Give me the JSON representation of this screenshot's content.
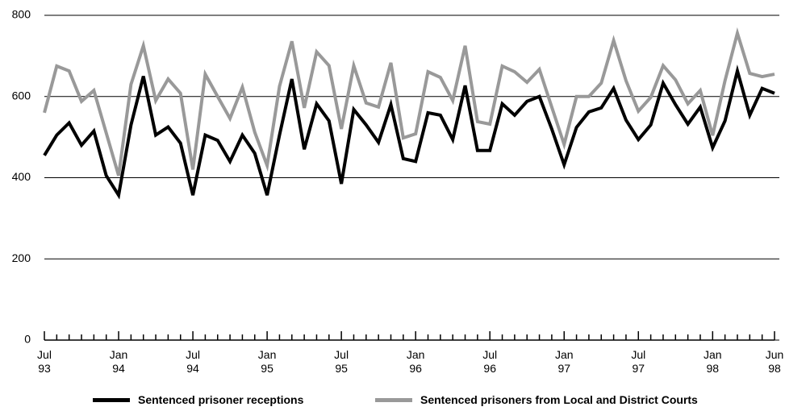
{
  "chart_data": {
    "type": "line",
    "categories": [
      "Jul 93",
      null,
      null,
      null,
      null,
      null,
      "Jan 94",
      null,
      null,
      null,
      null,
      null,
      "Jul 94",
      null,
      null,
      null,
      null,
      null,
      "Jan 95",
      null,
      null,
      null,
      null,
      null,
      "Jul 95",
      null,
      null,
      null,
      null,
      null,
      "Jan 96",
      null,
      null,
      null,
      null,
      null,
      "Jul 96",
      null,
      null,
      null,
      null,
      null,
      "Jan 97",
      null,
      null,
      null,
      null,
      null,
      "Jul 97",
      null,
      null,
      null,
      null,
      null,
      "Jan 98",
      null,
      null,
      null,
      null,
      "Jun 98"
    ],
    "series": [
      {
        "name": "Sentenced prisoner receptions",
        "color": "#000000",
        "values": [
          455,
          505,
          535,
          480,
          515,
          405,
          357,
          530,
          650,
          505,
          525,
          485,
          357,
          505,
          492,
          440,
          505,
          460,
          357,
          505,
          643,
          470,
          582,
          540,
          385,
          568,
          530,
          487,
          580,
          447,
          440,
          560,
          554,
          494,
          627,
          467,
          467,
          582,
          554,
          588,
          600,
          520,
          432,
          524,
          562,
          572,
          620,
          542,
          494,
          530,
          633,
          580,
          532,
          574,
          474,
          540,
          663,
          554,
          620,
          608
        ]
      },
      {
        "name": "Sentenced prisoners from Local and District Courts",
        "color": "#999999",
        "values": [
          560,
          675,
          663,
          588,
          615,
          510,
          405,
          630,
          725,
          590,
          643,
          608,
          420,
          655,
          600,
          546,
          623,
          512,
          430,
          625,
          736,
          572,
          710,
          676,
          520,
          676,
          584,
          574,
          683,
          498,
          508,
          661,
          647,
          590,
          725,
          538,
          532,
          675,
          661,
          635,
          667,
          574,
          482,
          600,
          600,
          633,
          738,
          639,
          564,
          598,
          676,
          641,
          582,
          615,
          504,
          639,
          756,
          657,
          649,
          655
        ]
      }
    ],
    "ylim": [
      0,
      800
    ],
    "yticks": [
      0,
      200,
      400,
      600,
      800
    ],
    "grid": true
  }
}
